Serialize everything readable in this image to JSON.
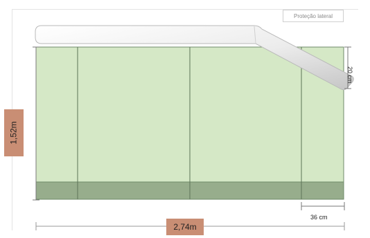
{
  "legend": {
    "label": "Proteção lateral"
  },
  "dimensions": {
    "height_label": "1,52m",
    "width_label": "2,74m",
    "right_label": "20 cm",
    "bottom_label": "36 cm"
  },
  "colors": {
    "field": "#d5e8c6",
    "band": "#97ad8c",
    "line": "#5c7357",
    "tag": "#c98e74",
    "protector_light": "#f3f3f3",
    "protector_dark": "#bebebe"
  }
}
